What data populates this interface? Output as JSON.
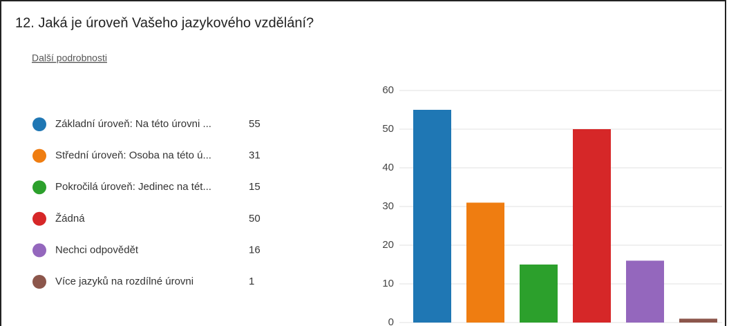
{
  "chart_data": {
    "type": "bar",
    "title": "12.  Jaká je úroveň Vašeho jazykového vzdělání?",
    "details_link": "Další podrobnosti",
    "categories": [
      "Základní úroveň: Na této úrovni ...",
      "Střední úroveň: Osoba na této ú...",
      "Pokročilá úroveň: Jedinec na tét...",
      "Žádná",
      "Nechci odpovědět",
      "Více jazyků na rozdílné úrovni"
    ],
    "values": [
      55,
      31,
      15,
      50,
      16,
      1
    ],
    "colors": [
      "#1f77b4",
      "#ef7d11",
      "#2ca02c",
      "#d62728",
      "#9467bd",
      "#8c564b"
    ],
    "ylim": [
      0,
      60
    ],
    "yticks": [
      0,
      10,
      20,
      30,
      40,
      50,
      60
    ],
    "grid": true
  }
}
